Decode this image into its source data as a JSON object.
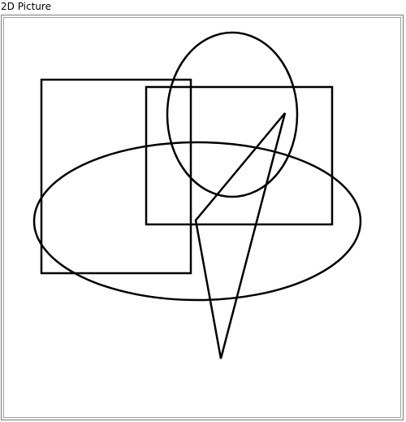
{
  "window": {
    "title": "2D Picture"
  },
  "canvas": {
    "background": "#ffffff",
    "stroke_color": "#000000",
    "shapes": [
      {
        "type": "rectangle",
        "name": "left-rectangle"
      },
      {
        "type": "rectangle",
        "name": "right-rectangle"
      },
      {
        "type": "ellipse",
        "name": "top-ellipse"
      },
      {
        "type": "ellipse",
        "name": "wide-ellipse"
      },
      {
        "type": "polygon",
        "name": "triangle"
      }
    ]
  }
}
